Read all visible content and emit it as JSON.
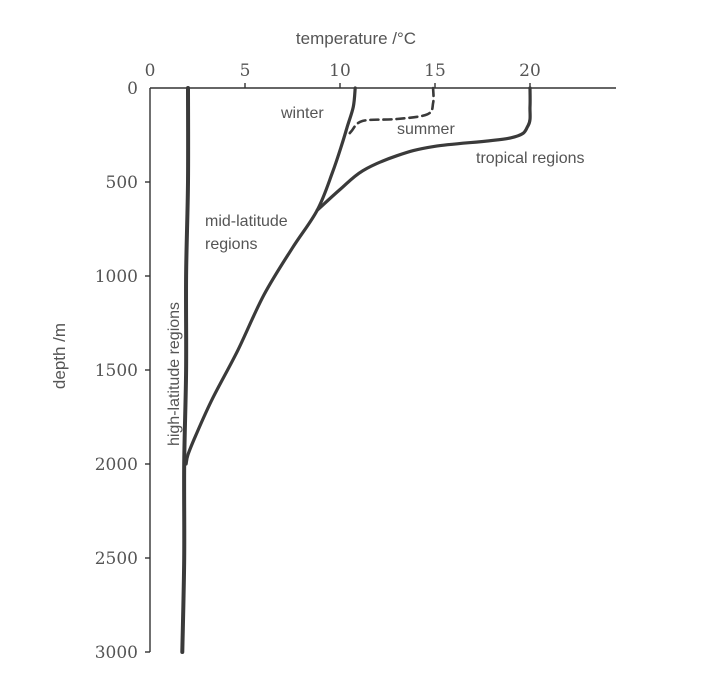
{
  "chart_data": {
    "type": "line",
    "xlabel": "temperature /°C",
    "ylabel": "depth /m",
    "xlim": [
      0,
      25
    ],
    "ylim": [
      0,
      3000
    ],
    "y_inverted": true,
    "x_axis_position": "top",
    "grid": false,
    "x_ticks": [
      "0",
      "5",
      "10",
      "15",
      "20"
    ],
    "y_ticks": [
      "0",
      "500",
      "1000",
      "1500",
      "2000",
      "2500",
      "3000"
    ],
    "series": [
      {
        "id": "high",
        "style": "solid",
        "points": [
          [
            2.0,
            0
          ],
          [
            2.0,
            500
          ],
          [
            1.9,
            1000
          ],
          [
            1.9,
            1500
          ],
          [
            1.8,
            2000
          ],
          [
            1.8,
            2500
          ],
          [
            1.7,
            3000
          ]
        ]
      },
      {
        "id": "winter",
        "style": "solid",
        "points": [
          [
            10.8,
            0
          ],
          [
            10.7,
            100
          ],
          [
            10.4,
            200
          ],
          [
            10.1,
            300
          ],
          [
            9.6,
            450
          ],
          [
            8.8,
            650
          ],
          [
            7.5,
            850
          ],
          [
            6.0,
            1100
          ],
          [
            4.6,
            1400
          ],
          [
            3.3,
            1650
          ],
          [
            2.4,
            1850
          ],
          [
            2.0,
            1950
          ],
          [
            1.9,
            2000
          ]
        ]
      },
      {
        "id": "summer",
        "style": "dashed",
        "points": [
          [
            14.9,
            0
          ],
          [
            14.9,
            80
          ],
          [
            14.6,
            140
          ],
          [
            13.0,
            165
          ],
          [
            11.2,
            175
          ],
          [
            10.6,
            230
          ],
          [
            10.4,
            260
          ]
        ]
      },
      {
        "id": "tropical",
        "style": "solid",
        "points": [
          [
            20.0,
            0
          ],
          [
            20.0,
            100
          ],
          [
            19.9,
            200
          ],
          [
            19.0,
            265
          ],
          [
            15.0,
            310
          ],
          [
            13.0,
            360
          ],
          [
            11.2,
            440
          ],
          [
            10.0,
            540
          ],
          [
            8.8,
            650
          ]
        ]
      }
    ],
    "annotations": {
      "high": "high-latitude regions",
      "winter": "winter",
      "summer": "summer",
      "tropical": "tropical regions",
      "mid1": "mid-latitude",
      "mid2": "regions"
    }
  }
}
